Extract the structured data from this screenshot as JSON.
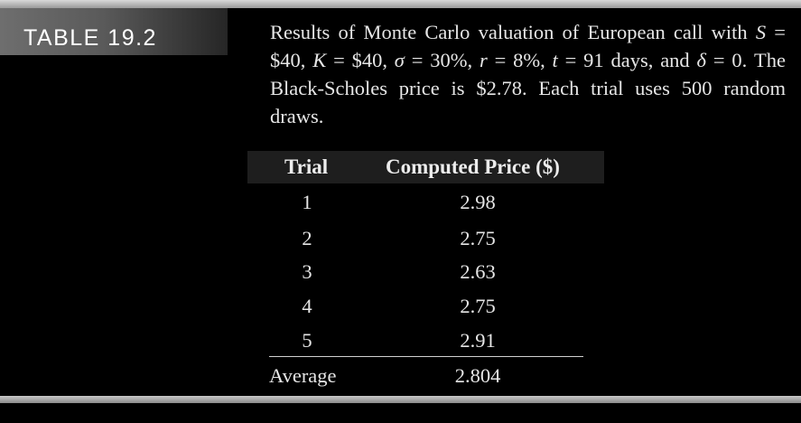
{
  "table_label": "TABLE 19.2",
  "caption": {
    "pre": "Results of Monte Carlo valuation of European call with ",
    "S": "S",
    "S_val": " = $40, ",
    "K": "K",
    "K_val": " = $40, ",
    "sigma": "σ",
    "sigma_val": " = 30%, ",
    "r": "r",
    "r_val": " = 8%, ",
    "t": "t",
    "t_val": " = 91 days, and ",
    "delta": "δ",
    "delta_val": " = 0. The Black-Scholes price is $2.78. Each trial uses 500 random draws."
  },
  "table": {
    "headers": {
      "trial": "Trial",
      "price": "Computed Price ($)"
    },
    "rows": [
      {
        "trial": "1",
        "price": "2.98"
      },
      {
        "trial": "2",
        "price": "2.75"
      },
      {
        "trial": "3",
        "price": "2.63"
      },
      {
        "trial": "4",
        "price": "2.75"
      },
      {
        "trial": "5",
        "price": "2.91"
      }
    ],
    "summary": {
      "label": "Average",
      "value": "2.804"
    }
  }
}
